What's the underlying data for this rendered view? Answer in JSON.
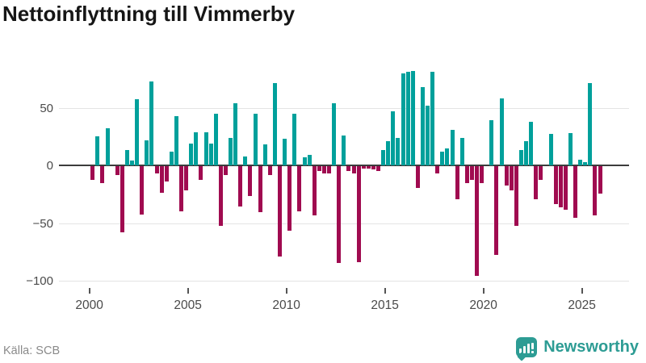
{
  "title": "Nettoinflyttning till Vimmerby",
  "footer": {
    "source_label": "Källa: SCB",
    "brand_name": "Newsworthy"
  },
  "colors": {
    "positive_bar": "#00a09b",
    "negative_bar": "#a00b50",
    "brand_teal": "#2d9c94",
    "grid": "#e4e4e4",
    "zero_line": "#3c3c3c",
    "axis_text": "#4a4a4a",
    "title_text": "#161616",
    "source_text": "#8a8a8a"
  },
  "chart_data": {
    "type": "bar",
    "title": "Nettoinflyttning till Vimmerby",
    "frequency": "quarterly",
    "start_period": "2000Q1",
    "end_period": "2025Q4",
    "values": [
      -12,
      25,
      -15,
      32,
      0,
      -8,
      -57,
      13,
      4,
      57,
      -42,
      22,
      73,
      -6,
      -23,
      -13,
      12,
      43,
      -39,
      -21,
      19,
      29,
      -12,
      29,
      19,
      45,
      -52,
      -8,
      24,
      54,
      -35,
      8,
      -26,
      45,
      -40,
      18,
      -8,
      71,
      -78,
      23,
      -56,
      45,
      -39,
      7,
      9,
      -43,
      -4,
      -6,
      -6,
      54,
      -84,
      26,
      -4,
      -6,
      -83,
      -2,
      -2,
      -3,
      -4,
      13,
      21,
      47,
      24,
      80,
      81,
      82,
      -19,
      68,
      52,
      81,
      -6,
      12,
      15,
      31,
      -29,
      24,
      -15,
      -12,
      -95,
      -15,
      0,
      39,
      -77,
      58,
      -17,
      -21,
      -52,
      13,
      21,
      38,
      -29,
      -12,
      0,
      27,
      -33,
      -36,
      -38,
      28,
      -45,
      5,
      3,
      71,
      -43,
      -24
    ],
    "yticks": [
      50,
      0,
      -50,
      -100
    ],
    "ytick_labels": [
      "50",
      "0",
      "−50",
      "−100"
    ],
    "ylim": [
      -100,
      85
    ],
    "xticks": [
      2000,
      2005,
      2010,
      2015,
      2020,
      2025
    ],
    "xtick_labels": [
      "2000",
      "2005",
      "2010",
      "2015",
      "2020",
      "2025"
    ],
    "grid": "horizontal",
    "legend": "none",
    "positive_color": "#00a09b",
    "negative_color": "#a00b50"
  }
}
